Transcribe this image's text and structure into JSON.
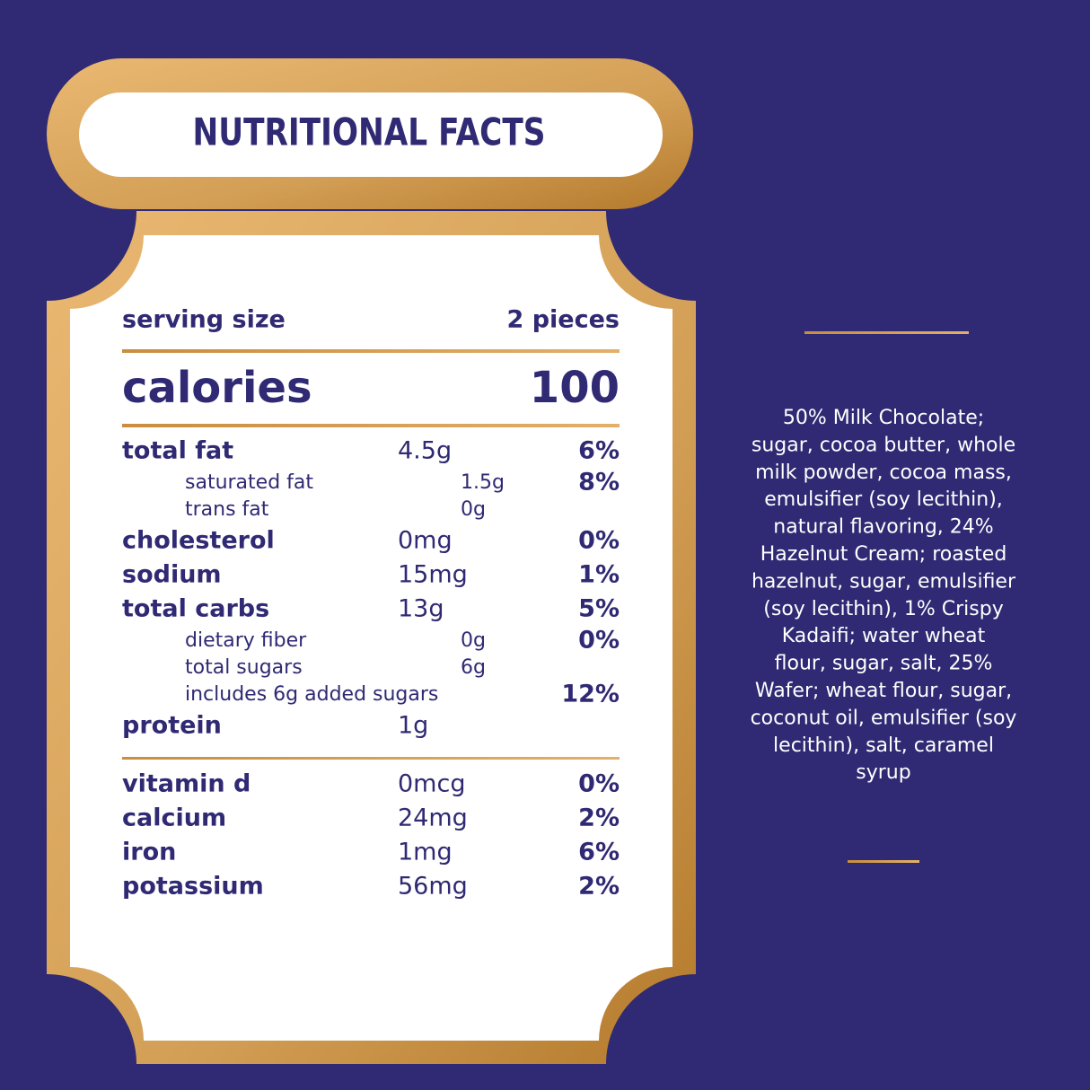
{
  "title": "NUTRITIONAL FACTS",
  "serving": {
    "label": "serving size",
    "value": "2 pieces"
  },
  "calories": {
    "label": "calories",
    "value": "100"
  },
  "nutrients": [
    {
      "name": "total fat",
      "amount": "4.5g",
      "dv": "6%"
    },
    {
      "name": "saturated fat",
      "amount": "1.5g",
      "dv": "8%",
      "indent": true
    },
    {
      "name": "trans fat",
      "amount": "0g",
      "indent": true
    },
    {
      "name": "cholesterol",
      "amount": "0mg",
      "dv": "0%"
    },
    {
      "name": "sodium",
      "amount": "15mg",
      "dv": "1%"
    },
    {
      "name": "total carbs",
      "amount": "13g",
      "dv": "5%"
    },
    {
      "name": "dietary fiber",
      "amount": "0g",
      "dv": "0%",
      "indent": true
    },
    {
      "name": "total sugars",
      "amount": "6g",
      "indent": true
    },
    {
      "name": "includes 6g added sugars",
      "dv": "12%",
      "indent": true
    },
    {
      "name": "protein",
      "amount": "1g"
    }
  ],
  "vitamins": [
    {
      "name": "vitamin d",
      "amount": "0mcg",
      "dv": "0%"
    },
    {
      "name": "calcium",
      "amount": "24mg",
      "dv": "2%"
    },
    {
      "name": "iron",
      "amount": "1mg",
      "dv": "6%"
    },
    {
      "name": "potassium",
      "amount": "56mg",
      "dv": "2%"
    }
  ],
  "ingredients": [
    "50% Milk Chocolate;",
    "sugar, cocoa butter, whole",
    "milk powder, cocoa mass,",
    "emulsifier (soy lecithin),",
    "natural flavoring, 24%",
    "Hazelnut Cream; roasted",
    "hazelnut, sugar, emulsifier",
    "(soy lecithin), 1% Crispy",
    "Kadaifi; water wheat",
    "flour, sugar, salt, 25%",
    "Wafer; wheat flour, sugar,",
    "coconut oil, emulsifier (soy",
    "lecithin), salt, caramel",
    "syrup"
  ]
}
